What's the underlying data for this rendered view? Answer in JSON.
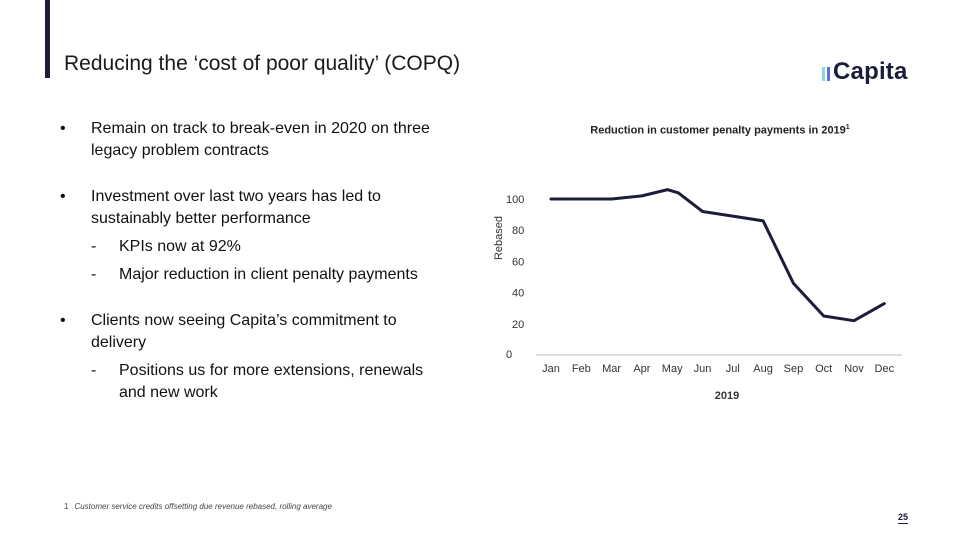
{
  "slide": {
    "title": "Reducing the ‘cost of poor quality’ (COPQ)",
    "page_number": "25",
    "logo_text": "Capita",
    "brand_color": "#1b1d3a",
    "logo_accent_colors": [
      "#8fd3d6",
      "#5b6ee1"
    ]
  },
  "bullets": {
    "bullet_char": "•",
    "dash_char": "-",
    "items": [
      {
        "text": "Remain on track to break-even in 2020 on three legacy problem contracts",
        "subs": []
      },
      {
        "text": "Investment over last two years has led to sustainably better performance",
        "subs": [
          "KPIs now at 92%",
          "Major reduction in client penalty payments"
        ]
      },
      {
        "text": "Clients now seeing Capita’s commitment to delivery",
        "subs": [
          "Positions us for more extensions, renewals and new work"
        ]
      }
    ]
  },
  "footnote": {
    "marker": "1",
    "text": "Customer service credits offsetting due revenue rebased, rolling average"
  },
  "chart_data": {
    "type": "line",
    "title": "Reduction in customer penalty payments in 2019",
    "title_superscript": "1",
    "xlabel": "2019",
    "ylabel": "Rebased",
    "categories": [
      "Jan",
      "Feb",
      "Mar",
      "Apr",
      "May",
      "Jun",
      "Jul",
      "Aug",
      "Sep",
      "Oct",
      "Nov",
      "Dec"
    ],
    "series": [
      {
        "name": "Customer penalty payments",
        "x": [
          0,
          1,
          2,
          3,
          3.85,
          4.2,
          5,
          6,
          7,
          8,
          9,
          10,
          11
        ],
        "values": [
          100,
          100,
          100,
          102,
          106,
          104,
          92,
          89,
          86,
          46,
          25,
          22,
          33
        ]
      }
    ],
    "yticks": [
      0,
      20,
      40,
      60,
      80,
      100
    ],
    "ylim": [
      0,
      110
    ],
    "line_color": "#1b1d3a",
    "grid": false,
    "legend": "none"
  }
}
